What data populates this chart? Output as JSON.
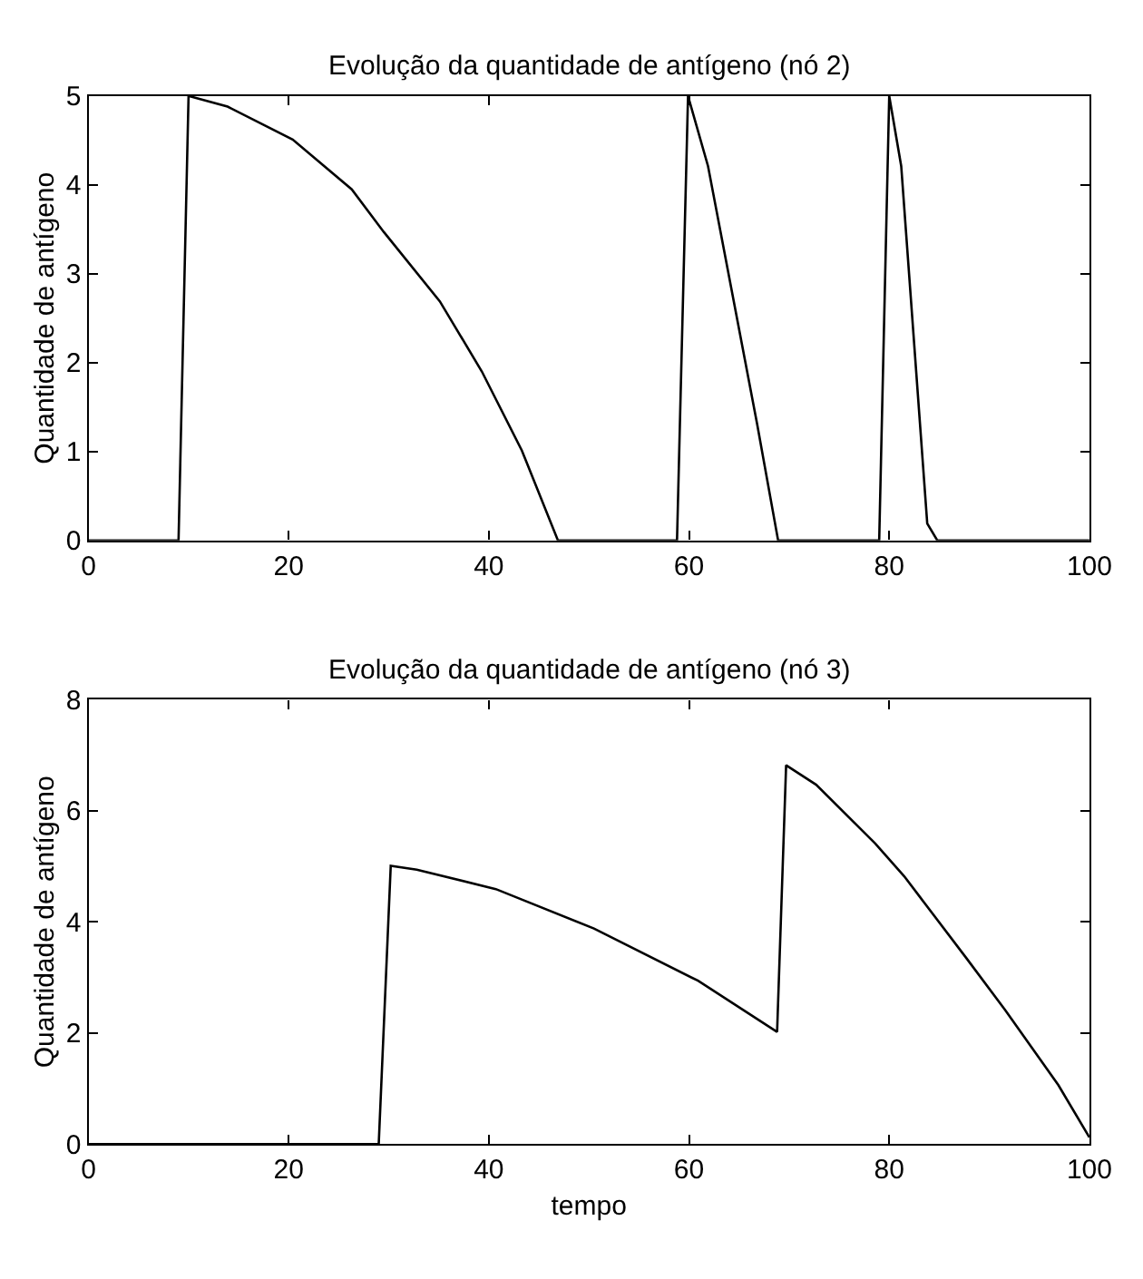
{
  "chart_data": [
    {
      "type": "line",
      "title": "Evolução da quantidade de antígeno (nó 2)",
      "ylabel": "Quantidade de antígeno",
      "xlim": [
        0,
        100
      ],
      "ylim": [
        0,
        5
      ],
      "xticks": [
        0,
        20,
        40,
        60,
        80,
        100
      ],
      "yticks": [
        0,
        1,
        2,
        3,
        4,
        5
      ],
      "series": [
        {
          "color": "#000000",
          "x": [
            0,
            9,
            10,
            13.9,
            20.4,
            26.3,
            29.5,
            35.1,
            39.3,
            43.3,
            46.9,
            58.8,
            59.9,
            61.9,
            66.8,
            68.9,
            79,
            80,
            81.2,
            83.8,
            84.8,
            100
          ],
          "values": [
            0,
            0,
            5,
            4.88,
            4.51,
            3.95,
            3.47,
            2.69,
            1.9,
            1.01,
            0,
            0,
            5,
            4.21,
            1.31,
            0,
            0,
            5,
            4.21,
            0.19,
            0,
            0
          ]
        }
      ]
    },
    {
      "type": "line",
      "title": "Evolução da quantidade de antígeno (nó 3)",
      "ylabel": "Quantidade de antígeno",
      "xlabel": "tempo",
      "xlim": [
        0,
        100
      ],
      "ylim": [
        0,
        8
      ],
      "xticks": [
        0,
        20,
        40,
        60,
        80,
        100
      ],
      "yticks": [
        0,
        2,
        4,
        6,
        8
      ],
      "series": [
        {
          "color": "#000000",
          "x": [
            0,
            29,
            30.2,
            32.8,
            40.7,
            50.5,
            60.9,
            68.8,
            69.7,
            72.7,
            78.6,
            81.5,
            87.7,
            91.6,
            96.9,
            100
          ],
          "values": [
            0,
            0,
            5.01,
            4.94,
            4.59,
            3.88,
            2.94,
            2.02,
            6.82,
            6.47,
            5.41,
            4.82,
            3.35,
            2.41,
            1.06,
            0.12
          ]
        }
      ]
    }
  ]
}
